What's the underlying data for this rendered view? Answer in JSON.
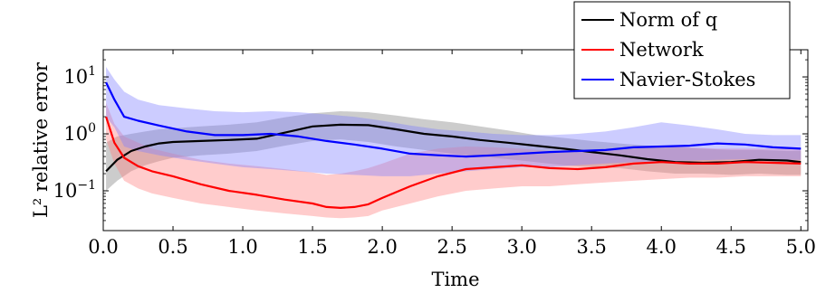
{
  "chart_data": {
    "type": "line",
    "xlabel": "Time",
    "ylabel": "L² relative error",
    "y_scale": "log",
    "xlim": [
      0.0,
      5.05
    ],
    "ylim": [
      0.02,
      30
    ],
    "grid": false,
    "legend_position": "top-right",
    "x_ticks": [
      {
        "value": 0.0,
        "label": "0.0"
      },
      {
        "value": 0.5,
        "label": "0.5"
      },
      {
        "value": 1.0,
        "label": "1.0"
      },
      {
        "value": 1.5,
        "label": "1.5"
      },
      {
        "value": 2.0,
        "label": "2.0"
      },
      {
        "value": 2.5,
        "label": "2.5"
      },
      {
        "value": 3.0,
        "label": "3.0"
      },
      {
        "value": 3.5,
        "label": "3.5"
      },
      {
        "value": 4.0,
        "label": "4.0"
      },
      {
        "value": 4.5,
        "label": "4.5"
      },
      {
        "value": 5.0,
        "label": "5.0"
      }
    ],
    "y_ticks": [
      {
        "value": 0.1,
        "base": "10",
        "exp": "−1"
      },
      {
        "value": 1,
        "base": "10",
        "exp": "0"
      },
      {
        "value": 10,
        "base": "10",
        "exp": "1"
      }
    ],
    "series": [
      {
        "name": "Norm of q",
        "color": "#000000",
        "band_color": "#808080",
        "x": [
          0.02,
          0.1,
          0.2,
          0.3,
          0.4,
          0.5,
          0.7,
          0.9,
          1.1,
          1.3,
          1.5,
          1.7,
          1.9,
          2.1,
          2.3,
          2.5,
          2.7,
          2.9,
          3.1,
          3.3,
          3.5,
          3.7,
          3.9,
          4.1,
          4.3,
          4.5,
          4.7,
          4.9,
          5.0
        ],
        "values": [
          0.22,
          0.35,
          0.5,
          0.6,
          0.68,
          0.72,
          0.75,
          0.78,
          0.82,
          1.05,
          1.35,
          1.45,
          1.42,
          1.2,
          1.0,
          0.9,
          0.78,
          0.7,
          0.62,
          0.55,
          0.48,
          0.42,
          0.36,
          0.32,
          0.31,
          0.32,
          0.35,
          0.34,
          0.32
        ],
        "lower": [
          0.1,
          0.15,
          0.22,
          0.28,
          0.33,
          0.38,
          0.42,
          0.45,
          0.5,
          0.62,
          0.75,
          0.8,
          0.72,
          0.6,
          0.52,
          0.45,
          0.4,
          0.36,
          0.32,
          0.28,
          0.26,
          0.25,
          0.22,
          0.2,
          0.2,
          0.19,
          0.2,
          0.19,
          0.19
        ],
        "upper": [
          0.7,
          0.9,
          1.0,
          1.1,
          1.2,
          1.25,
          1.35,
          1.45,
          1.6,
          1.95,
          2.3,
          2.5,
          2.4,
          2.1,
          1.8,
          1.6,
          1.35,
          1.15,
          0.95,
          0.85,
          0.75,
          0.68,
          0.62,
          0.58,
          0.55,
          0.52,
          0.52,
          0.5,
          0.5
        ]
      },
      {
        "name": "Network",
        "color": "#ff0000",
        "band_color": "#ff8080",
        "x": [
          0.02,
          0.08,
          0.15,
          0.25,
          0.35,
          0.5,
          0.7,
          0.9,
          1.1,
          1.3,
          1.5,
          1.6,
          1.7,
          1.8,
          1.9,
          2.0,
          2.2,
          2.4,
          2.6,
          2.8,
          3.0,
          3.2,
          3.4,
          3.6,
          3.8,
          4.0,
          4.2,
          4.4,
          4.6,
          4.8,
          5.0
        ],
        "values": [
          2.0,
          0.7,
          0.38,
          0.27,
          0.22,
          0.18,
          0.13,
          0.1,
          0.085,
          0.07,
          0.06,
          0.052,
          0.05,
          0.052,
          0.058,
          0.075,
          0.12,
          0.18,
          0.24,
          0.26,
          0.28,
          0.25,
          0.24,
          0.26,
          0.3,
          0.32,
          0.3,
          0.3,
          0.32,
          0.31,
          0.3
        ],
        "lower": [
          0.8,
          0.3,
          0.15,
          0.11,
          0.09,
          0.075,
          0.06,
          0.052,
          0.045,
          0.04,
          0.036,
          0.034,
          0.033,
          0.034,
          0.036,
          0.045,
          0.06,
          0.08,
          0.1,
          0.11,
          0.12,
          0.12,
          0.13,
          0.14,
          0.15,
          0.16,
          0.17,
          0.17,
          0.18,
          0.18,
          0.18
        ],
        "upper": [
          3.5,
          1.5,
          0.9,
          0.7,
          0.55,
          0.45,
          0.35,
          0.3,
          0.27,
          0.24,
          0.21,
          0.19,
          0.2,
          0.22,
          0.25,
          0.3,
          0.45,
          0.55,
          0.6,
          0.58,
          0.55,
          0.5,
          0.48,
          0.5,
          0.55,
          0.6,
          0.58,
          0.55,
          0.55,
          0.55,
          0.55
        ]
      },
      {
        "name": "Navier-Stokes",
        "color": "#0000ff",
        "band_color": "#8080ff",
        "x": [
          0.02,
          0.08,
          0.15,
          0.25,
          0.4,
          0.6,
          0.8,
          1.0,
          1.2,
          1.4,
          1.6,
          1.8,
          2.0,
          2.2,
          2.4,
          2.6,
          2.8,
          3.0,
          3.2,
          3.4,
          3.6,
          3.8,
          4.0,
          4.2,
          4.4,
          4.6,
          4.8,
          5.0
        ],
        "values": [
          8.0,
          4.0,
          2.0,
          1.7,
          1.4,
          1.1,
          0.95,
          0.95,
          1.0,
          0.9,
          0.75,
          0.65,
          0.55,
          0.45,
          0.42,
          0.4,
          0.42,
          0.45,
          0.48,
          0.5,
          0.52,
          0.58,
          0.6,
          0.62,
          0.68,
          0.65,
          0.58,
          0.55
        ],
        "lower": [
          2.0,
          1.3,
          0.6,
          0.5,
          0.42,
          0.35,
          0.3,
          0.26,
          0.24,
          0.22,
          0.2,
          0.19,
          0.18,
          0.18,
          0.2,
          0.22,
          0.24,
          0.26,
          0.26,
          0.28,
          0.3,
          0.32,
          0.33,
          0.34,
          0.35,
          0.36,
          0.35,
          0.35
        ],
        "upper": [
          15,
          9,
          5.5,
          4.0,
          3.2,
          2.8,
          2.5,
          2.4,
          2.5,
          2.4,
          2.2,
          2.0,
          1.7,
          1.4,
          1.2,
          1.1,
          1.0,
          0.95,
          0.95,
          1.0,
          1.1,
          1.3,
          1.6,
          1.4,
          1.2,
          1.0,
          0.95,
          0.95
        ]
      }
    ]
  }
}
